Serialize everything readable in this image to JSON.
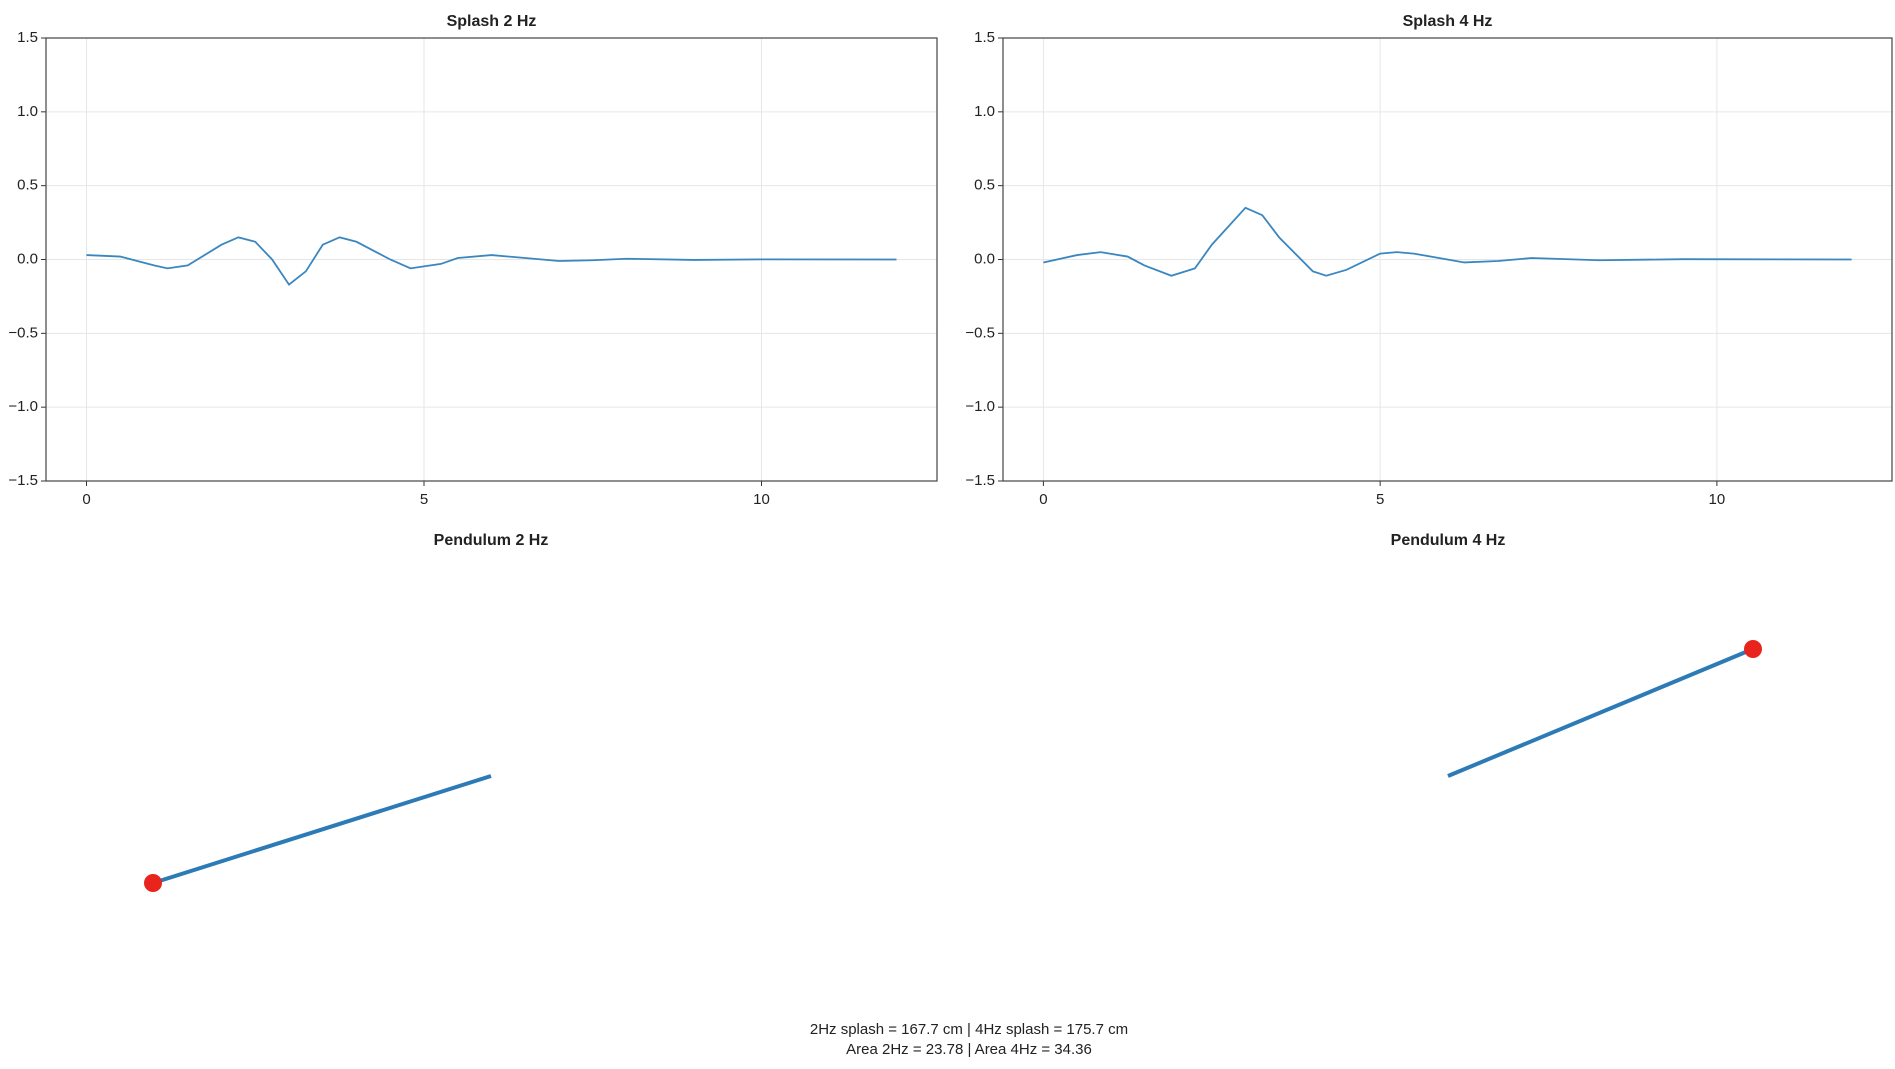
{
  "chart_data": [
    {
      "type": "line",
      "title": "Splash 2 Hz",
      "color": "#3a87c0",
      "grid": true,
      "x": [
        0,
        0.5,
        1,
        1.2,
        1.5,
        2,
        2.25,
        2.5,
        2.75,
        3,
        3.25,
        3.5,
        3.75,
        4,
        4.5,
        4.8,
        5.25,
        5.5,
        6,
        6.5,
        7,
        7.5,
        8,
        9,
        10,
        12
      ],
      "values": [
        0.03,
        0.02,
        -0.04,
        -0.06,
        -0.04,
        0.1,
        0.15,
        0.12,
        0.0,
        -0.17,
        -0.08,
        0.1,
        0.15,
        0.12,
        0.0,
        -0.06,
        -0.03,
        0.01,
        0.03,
        0.01,
        -0.01,
        -0.005,
        0.005,
        -0.003,
        0.001,
        0
      ],
      "xlim": [
        -0.6,
        12.6
      ],
      "xticks": [
        0,
        5,
        10
      ],
      "ylim": [
        -1.5,
        1.5
      ],
      "yticks": [
        {
          "value": -1.5,
          "label": "−1.5"
        },
        {
          "value": -1,
          "label": "−1.0"
        },
        {
          "value": -0.5,
          "label": "−0.5"
        },
        {
          "value": 0,
          "label": "0.0"
        },
        0.5,
        {
          "value": 1,
          "label": "1.0"
        },
        1.5
      ]
    },
    {
      "type": "line",
      "title": "Splash 4 Hz",
      "color": "#3a87c0",
      "grid": true,
      "x": [
        0,
        0.5,
        0.85,
        1.25,
        1.5,
        1.9,
        2.25,
        2.5,
        3,
        3.25,
        3.5,
        4,
        4.2,
        4.5,
        5,
        5.25,
        5.5,
        6,
        6.25,
        6.75,
        7.25,
        8.25,
        9.5,
        12
      ],
      "values": [
        -0.02,
        0.03,
        0.05,
        0.02,
        -0.04,
        -0.11,
        -0.06,
        0.1,
        0.35,
        0.3,
        0.15,
        -0.08,
        -0.11,
        -0.07,
        0.04,
        0.05,
        0.04,
        0.0,
        -0.02,
        -0.01,
        0.01,
        -0.005,
        0.002,
        0
      ],
      "xlim": [
        -0.6,
        12.6
      ],
      "xticks": [
        0,
        5,
        10
      ],
      "ylim": [
        -1.5,
        1.5
      ],
      "yticks": [
        {
          "value": -1.5,
          "label": "−1.5"
        },
        {
          "value": -1,
          "label": "−1.0"
        },
        {
          "value": -0.5,
          "label": "−0.5"
        },
        {
          "value": 0,
          "label": "0.0"
        },
        0.5,
        {
          "value": 1,
          "label": "1.0"
        },
        1.5
      ]
    }
  ],
  "pendulums": [
    {
      "title": "Pendulum 2 Hz"
    },
    {
      "title": "Pendulum 4 Hz"
    }
  ],
  "caption": [
    "2Hz splash = 167.7 cm | 4Hz splash = 175.7 cm",
    "Area 2Hz = 23.78 | Area 4Hz = 34.36"
  ]
}
